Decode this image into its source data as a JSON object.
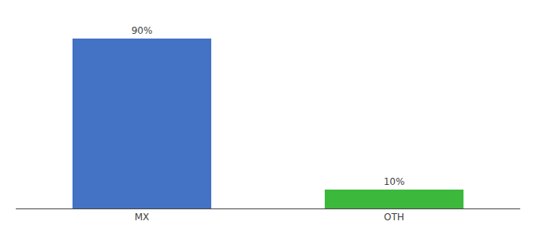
{
  "chart_data": {
    "type": "bar",
    "categories": [
      "MX",
      "OTH"
    ],
    "values": [
      90,
      10
    ],
    "value_labels": [
      "90%",
      "10%"
    ],
    "colors": [
      "#4472c4",
      "#3cb83c"
    ],
    "ylim": [
      0,
      100
    ],
    "data_labels": true,
    "tick_labels": "x",
    "grid": false
  }
}
